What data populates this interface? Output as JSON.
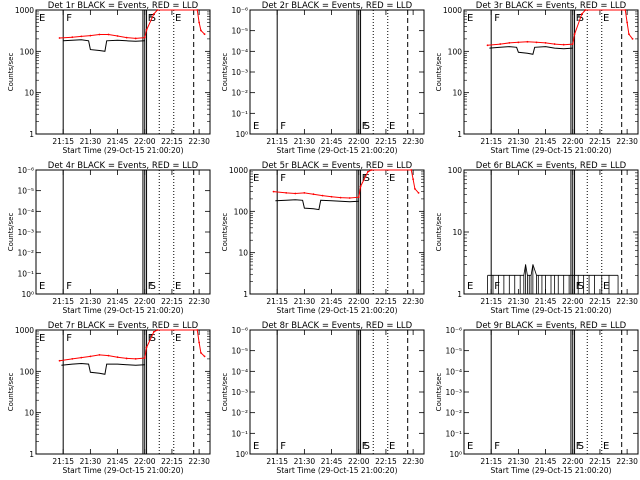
{
  "chart_data": [
    {
      "type": "line",
      "title": "Det 1r BLACK = Events, RED = LLD",
      "xlabel": "Start Time (29-Oct-15 21:00:20)",
      "ylabel": "Counts/sec",
      "x_ticks": [
        "21:15",
        "21:30",
        "21:45",
        "22:00",
        "22:15",
        "22:30"
      ],
      "y_scale": "log",
      "y_ticks": [
        "1",
        "10",
        "100",
        "1000"
      ],
      "y_range": [
        1,
        1000
      ],
      "markers": [
        {
          "label": "E",
          "time": "21:00"
        },
        {
          "label": "F",
          "time": "21:15"
        },
        {
          "label": "F",
          "time": "22:00"
        },
        {
          "label": "S",
          "time": "22:01"
        },
        {
          "label": "E",
          "time": "22:15"
        }
      ],
      "series": [
        {
          "color": "#000000",
          "points": [
            [
              "21:15",
              180
            ],
            [
              "21:20",
              185
            ],
            [
              "21:25",
              190
            ],
            [
              "21:29",
              180
            ],
            [
              "21:30",
              110
            ],
            [
              "21:35",
              105
            ],
            [
              "21:38",
              100
            ],
            [
              "21:39",
              180
            ],
            [
              "21:45",
              185
            ],
            [
              "21:50",
              180
            ],
            [
              "21:55",
              175
            ],
            [
              "22:00",
              180
            ]
          ]
        },
        {
          "color": "#ff0000",
          "points": [
            [
              "21:13",
              210
            ],
            [
              "21:20",
              220
            ],
            [
              "21:25",
              230
            ],
            [
              "21:30",
              240
            ],
            [
              "21:35",
              255
            ],
            [
              "21:40",
              255
            ],
            [
              "21:45",
              235
            ],
            [
              "21:50",
              215
            ],
            [
              "21:55",
              205
            ],
            [
              "22:00",
              215
            ],
            [
              "22:01",
              330
            ],
            [
              "22:05",
              800
            ],
            [
              "22:07",
              1000
            ],
            [
              "22:29",
              1000
            ],
            [
              "22:30",
              500
            ],
            [
              "22:31",
              320
            ],
            [
              "22:33",
              260
            ]
          ]
        }
      ]
    },
    {
      "type": "line",
      "title": "Det 2r BLACK = Events, RED = LLD",
      "xlabel": "Start Time (29-Oct-15 21:00:20)",
      "ylabel": "Counts/sec",
      "x_ticks": [
        "21:15",
        "21:30",
        "21:45",
        "22:00",
        "22:15",
        "22:30"
      ],
      "y_scale": "log",
      "y_ticks": [
        "10⁰",
        "10⁻¹",
        "10⁻²",
        "10⁻³",
        "10⁻⁴",
        "10⁻⁵",
        "10⁻⁶"
      ],
      "y_range": [
        0,
        6
      ],
      "markers": [
        {
          "label": "E",
          "time": "21:00"
        },
        {
          "label": "F",
          "time": "21:15"
        },
        {
          "label": "F",
          "time": "22:00"
        },
        {
          "label": "S",
          "time": "22:01"
        },
        {
          "label": "E",
          "time": "22:15"
        }
      ],
      "series": []
    },
    {
      "type": "line",
      "title": "Det 3r BLACK = Events, RED = LLD",
      "xlabel": "Start Time (29-Oct-15 21:00:20)",
      "ylabel": "Counts/sec",
      "x_ticks": [
        "21:15",
        "21:30",
        "21:45",
        "22:00",
        "22:15",
        "22:30"
      ],
      "y_scale": "log",
      "y_ticks": [
        "1",
        "10",
        "100",
        "1000"
      ],
      "y_range": [
        1,
        1000
      ],
      "markers": [
        {
          "label": "E",
          "time": "21:00"
        },
        {
          "label": "F",
          "time": "21:15"
        },
        {
          "label": "F",
          "time": "22:00"
        },
        {
          "label": "S",
          "time": "22:01"
        },
        {
          "label": "E",
          "time": "22:15"
        }
      ],
      "series": [
        {
          "color": "#000000",
          "points": [
            [
              "21:14",
              120
            ],
            [
              "21:20",
              125
            ],
            [
              "21:25",
              130
            ],
            [
              "21:29",
              125
            ],
            [
              "21:30",
              95
            ],
            [
              "21:35",
              90
            ],
            [
              "21:38",
              85
            ],
            [
              "21:39",
              125
            ],
            [
              "21:45",
              130
            ],
            [
              "21:50",
              120
            ],
            [
              "21:55",
              115
            ],
            [
              "22:00",
              120
            ]
          ]
        },
        {
          "color": "#ff0000",
          "points": [
            [
              "21:13",
              140
            ],
            [
              "21:20",
              150
            ],
            [
              "21:25",
              160
            ],
            [
              "21:30",
              165
            ],
            [
              "21:35",
              170
            ],
            [
              "21:40",
              165
            ],
            [
              "21:45",
              160
            ],
            [
              "21:50",
              150
            ],
            [
              "21:55",
              145
            ],
            [
              "22:00",
              150
            ],
            [
              "22:01",
              260
            ],
            [
              "22:05",
              800
            ],
            [
              "22:07",
              1000
            ],
            [
              "22:29",
              1000
            ],
            [
              "22:30",
              500
            ],
            [
              "22:31",
              260
            ],
            [
              "22:33",
              200
            ]
          ]
        }
      ]
    },
    {
      "type": "line",
      "title": "Det 4r BLACK = Events, RED = LLD",
      "xlabel": "Start Time (29-Oct-15 21:00:20)",
      "ylabel": "Counts/sec",
      "x_ticks": [
        "21:15",
        "21:30",
        "21:45",
        "22:00",
        "22:15",
        "22:30"
      ],
      "y_scale": "log",
      "y_ticks": [
        "10⁰",
        "10⁻¹",
        "10⁻²",
        "10⁻³",
        "10⁻⁴",
        "10⁻⁵",
        "10⁻⁶"
      ],
      "y_range": [
        0,
        6
      ],
      "markers": [
        {
          "label": "E",
          "time": "21:00"
        },
        {
          "label": "F",
          "time": "21:15"
        },
        {
          "label": "F",
          "time": "22:00"
        },
        {
          "label": "S",
          "time": "22:01"
        },
        {
          "label": "E",
          "time": "22:15"
        }
      ],
      "series": []
    },
    {
      "type": "line",
      "title": "Det 5r BLACK = Events, RED = LLD",
      "xlabel": "Start Time (29-Oct-15 21:00:20)",
      "ylabel": "Counts/sec",
      "x_ticks": [
        "21:15",
        "21:30",
        "21:45",
        "22:00",
        "22:15",
        "22:30"
      ],
      "y_scale": "log",
      "y_ticks": [
        "1",
        "10",
        "100",
        "1000"
      ],
      "y_range": [
        1,
        1000
      ],
      "markers": [
        {
          "label": "E",
          "time": "21:00"
        },
        {
          "label": "F",
          "time": "21:15"
        },
        {
          "label": "F",
          "time": "22:00"
        },
        {
          "label": "S",
          "time": "22:01"
        },
        {
          "label": "E",
          "time": "22:15"
        }
      ],
      "series": [
        {
          "color": "#000000",
          "points": [
            [
              "21:14",
              180
            ],
            [
              "21:20",
              185
            ],
            [
              "21:25",
              190
            ],
            [
              "21:29",
              185
            ],
            [
              "21:30",
              120
            ],
            [
              "21:35",
              115
            ],
            [
              "21:38",
              110
            ],
            [
              "21:39",
              185
            ],
            [
              "21:45",
              180
            ],
            [
              "21:50",
              175
            ],
            [
              "21:55",
              170
            ],
            [
              "22:00",
              175
            ]
          ]
        },
        {
          "color": "#ff0000",
          "points": [
            [
              "21:13",
              300
            ],
            [
              "21:20",
              280
            ],
            [
              "21:25",
              270
            ],
            [
              "21:30",
              280
            ],
            [
              "21:35",
              260
            ],
            [
              "21:40",
              240
            ],
            [
              "21:45",
              225
            ],
            [
              "21:50",
              215
            ],
            [
              "21:55",
              210
            ],
            [
              "22:00",
              220
            ],
            [
              "22:01",
              400
            ],
            [
              "22:05",
              900
            ],
            [
              "22:07",
              1000
            ],
            [
              "22:29",
              1000
            ],
            [
              "22:30",
              600
            ],
            [
              "22:31",
              350
            ],
            [
              "22:33",
              280
            ]
          ]
        }
      ]
    },
    {
      "type": "line",
      "title": "Det 6r BLACK = Events, RED = LLD",
      "xlabel": "Start Time (29-Oct-15 21:00:20)",
      "ylabel": "Counts/sec",
      "x_ticks": [
        "21:15",
        "21:30",
        "21:45",
        "22:00",
        "22:15",
        "22:30"
      ],
      "y_scale": "log",
      "y_ticks": [
        "1",
        "10",
        "100"
      ],
      "y_range": [
        1,
        100
      ],
      "markers": [
        {
          "label": "E",
          "time": "21:00"
        },
        {
          "label": "F",
          "time": "21:15"
        },
        {
          "label": "F",
          "time": "22:00"
        },
        {
          "label": "S",
          "time": "22:01"
        },
        {
          "label": "E",
          "time": "22:15"
        }
      ],
      "series": [
        {
          "color": "#000000",
          "spikes": true,
          "points": [
            [
              "21:13",
              2
            ],
            [
              "21:16",
              2
            ],
            [
              "21:19",
              2
            ],
            [
              "21:22",
              2
            ],
            [
              "21:25",
              2
            ],
            [
              "21:28",
              2
            ],
            [
              "21:31",
              2
            ],
            [
              "21:33",
              2
            ],
            [
              "21:34",
              3
            ],
            [
              "21:35",
              2
            ],
            [
              "21:36",
              2
            ],
            [
              "21:37",
              2
            ],
            [
              "21:38",
              3
            ],
            [
              "21:40",
              2
            ],
            [
              "21:41",
              2
            ],
            [
              "21:43",
              2
            ],
            [
              "21:45",
              2
            ],
            [
              "21:48",
              2
            ],
            [
              "21:50",
              2
            ],
            [
              "21:52",
              2
            ],
            [
              "21:55",
              2
            ],
            [
              "21:58",
              2
            ],
            [
              "22:00",
              2
            ],
            [
              "22:03",
              2
            ],
            [
              "22:06",
              2
            ],
            [
              "22:09",
              2
            ],
            [
              "22:12",
              2
            ],
            [
              "22:16",
              2
            ],
            [
              "22:20",
              2
            ],
            [
              "22:25",
              2
            ]
          ]
        }
      ]
    },
    {
      "type": "line",
      "title": "Det 7r BLACK = Events, RED = LLD",
      "xlabel": "Start Time (29-Oct-15 21:00:20)",
      "ylabel": "Counts/sec",
      "x_ticks": [
        "21:15",
        "21:30",
        "21:45",
        "22:00",
        "22:15",
        "22:30"
      ],
      "y_scale": "log",
      "y_ticks": [
        "1",
        "10",
        "100",
        "1000"
      ],
      "y_range": [
        1,
        1000
      ],
      "markers": [
        {
          "label": "E",
          "time": "21:00"
        },
        {
          "label": "F",
          "time": "21:15"
        },
        {
          "label": "F",
          "time": "22:00"
        },
        {
          "label": "S",
          "time": "22:01"
        },
        {
          "label": "E",
          "time": "22:15"
        }
      ],
      "series": [
        {
          "color": "#000000",
          "points": [
            [
              "21:14",
              140
            ],
            [
              "21:20",
              150
            ],
            [
              "21:25",
              155
            ],
            [
              "21:29",
              150
            ],
            [
              "21:30",
              95
            ],
            [
              "21:35",
              90
            ],
            [
              "21:38",
              85
            ],
            [
              "21:39",
              150
            ],
            [
              "21:45",
              150
            ],
            [
              "21:50",
              145
            ],
            [
              "21:55",
              140
            ],
            [
              "22:00",
              145
            ]
          ]
        },
        {
          "color": "#ff0000",
          "points": [
            [
              "21:13",
              180
            ],
            [
              "21:20",
              200
            ],
            [
              "21:25",
              215
            ],
            [
              "21:30",
              230
            ],
            [
              "21:35",
              250
            ],
            [
              "21:40",
              240
            ],
            [
              "21:45",
              220
            ],
            [
              "21:50",
              205
            ],
            [
              "21:55",
              200
            ],
            [
              "22:00",
              210
            ],
            [
              "22:01",
              380
            ],
            [
              "22:05",
              900
            ],
            [
              "22:07",
              1000
            ],
            [
              "22:29",
              1000
            ],
            [
              "22:30",
              500
            ],
            [
              "22:31",
              280
            ],
            [
              "22:33",
              230
            ]
          ]
        }
      ]
    },
    {
      "type": "line",
      "title": "Det 8r BLACK = Events, RED = LLD",
      "xlabel": "Start Time (29-Oct-15 21:00:20)",
      "ylabel": "Counts/sec",
      "x_ticks": [
        "21:15",
        "21:30",
        "21:45",
        "22:00",
        "22:15",
        "22:30"
      ],
      "y_scale": "log",
      "y_ticks": [
        "10⁰",
        "10⁻¹",
        "10⁻²",
        "10⁻³",
        "10⁻⁴",
        "10⁻⁵",
        "10⁻⁶"
      ],
      "y_range": [
        0,
        6
      ],
      "markers": [
        {
          "label": "E",
          "time": "21:00"
        },
        {
          "label": "F",
          "time": "21:15"
        },
        {
          "label": "F",
          "time": "22:00"
        },
        {
          "label": "S",
          "time": "22:01"
        },
        {
          "label": "E",
          "time": "22:15"
        }
      ],
      "series": []
    },
    {
      "type": "line",
      "title": "Det 9r BLACK = Events, RED = LLD",
      "xlabel": "Start Time (29-Oct-15 21:00:20)",
      "ylabel": "Counts/sec",
      "x_ticks": [
        "21:15",
        "21:30",
        "21:45",
        "22:00",
        "22:15",
        "22:30"
      ],
      "y_scale": "log",
      "y_ticks": [
        "10⁰",
        "10⁻¹",
        "10⁻²",
        "10⁻³",
        "10⁻⁴",
        "10⁻⁵",
        "10⁻⁶"
      ],
      "y_range": [
        0,
        6
      ],
      "markers": [
        {
          "label": "E",
          "time": "21:00"
        },
        {
          "label": "F",
          "time": "21:15"
        },
        {
          "label": "F",
          "time": "22:00"
        },
        {
          "label": "S",
          "time": "22:01"
        },
        {
          "label": "E",
          "time": "22:15"
        }
      ],
      "series": []
    }
  ],
  "shared": {
    "x_time_start": "21:00",
    "x_time_end": "22:36",
    "vline_solid_times": [
      "21:15",
      "21:59",
      "22:00",
      "22:01"
    ],
    "vline_dotted_times": [
      "22:08",
      "22:16"
    ],
    "vline_dashed_times": [
      "22:27"
    ],
    "colors": {
      "events": "#000000",
      "lld": "#ff0000"
    }
  }
}
